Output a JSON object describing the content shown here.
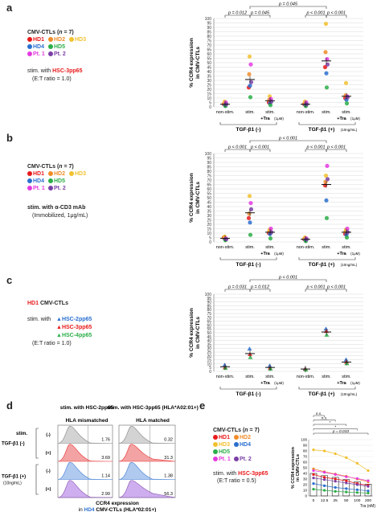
{
  "panel_labels": {
    "a": "a",
    "b": "b",
    "c": "c",
    "d": "d",
    "e": "e"
  },
  "legend": {
    "title": "CMV-CTLs (",
    "title_n": "n",
    "title_end": " = 7)",
    "donors": [
      {
        "name": "HD1",
        "color": "#e8191a"
      },
      {
        "name": "HD2",
        "color": "#f08c28"
      },
      {
        "name": "HD3",
        "color": "#f2c12e"
      },
      {
        "name": "HD4",
        "color": "#2a6fcf"
      },
      {
        "name": "HD5",
        "color": "#2bae48"
      },
      {
        "name": "Pt. 1",
        "color": "#e43be0"
      },
      {
        "name": "Pt. 2",
        "color": "#7a3fa6"
      }
    ]
  },
  "panel_a_left": {
    "stim_prefix": "stim. with ",
    "stim_peptide": "HSC-3pp65",
    "ratio": "(E:T ratio = 1.0)"
  },
  "panel_b_left": {
    "stim": "stim. with α-CD3 mAb",
    "immob": "(Immobilized, 1μg/mL)"
  },
  "panel_c_left": {
    "title_donor": "HD1",
    "title_rest": " CMV-CTLs",
    "stim_with": "stim. with",
    "peptides": [
      "HSC-2pp65",
      "HSC-3pp65",
      "HSC-4pp65"
    ],
    "peptide_colors": [
      "#2a6fcf",
      "#e8191a",
      "#2bae48"
    ],
    "ratio": "(E:T ratio = 1.0)"
  },
  "panel_e_left": {
    "stim_prefix": "stim. with ",
    "stim_peptide": "HSC-3pp65",
    "ratio": "(E:T ratio = 0.5)"
  },
  "strip_common": {
    "ylabel": "% CCR4 expression\nin CMV-CTLs",
    "yticks": [
      "0",
      "5",
      "10",
      "15",
      "20",
      "25",
      "30",
      "35",
      "40",
      "45",
      "50",
      "55",
      "60",
      "65",
      "70",
      "75",
      "80",
      "85",
      "90",
      "95",
      "100"
    ],
    "xlabels": [
      "non-stim.",
      "stim.",
      "stim.",
      "non-stim.",
      "stim.",
      "stim."
    ],
    "tra": "+Tra",
    "tra_dose": "(1μM)",
    "group1": "TGF-β1 (-)",
    "group2": "TGF-β1 (+)",
    "group2_dose": "(10ng/mL)"
  },
  "chart_data": [
    {
      "id": "a",
      "type": "scatter",
      "ylabel": "% CCR4 expression in CMV-CTLs",
      "ylim": [
        0,
        100
      ],
      "categories": [
        "non-stim.",
        "stim.",
        "stim. +Tra (1μM)",
        "non-stim.",
        "stim.",
        "stim. +Tra (1μM)"
      ],
      "groups": [
        "TGF-β1 (-)",
        "TGF-β1 (+) (10ng/mL)"
      ],
      "series": [
        {
          "name": "HD1",
          "values": [
            3,
            22,
            5,
            3,
            45,
            10
          ]
        },
        {
          "name": "HD2",
          "values": [
            4,
            37,
            8,
            4,
            62,
            13
          ]
        },
        {
          "name": "HD3",
          "values": [
            6,
            57,
            12,
            6,
            94,
            27
          ]
        },
        {
          "name": "HD4",
          "values": [
            2,
            24,
            4,
            2,
            38,
            8
          ]
        },
        {
          "name": "HD5",
          "values": [
            1,
            11,
            2,
            1,
            22,
            4
          ]
        },
        {
          "name": "Pt. 1",
          "values": [
            5,
            48,
            9,
            5,
            54,
            12
          ]
        },
        {
          "name": "Pt. 2",
          "values": [
            3,
            28,
            6,
            3,
            48,
            11
          ]
        }
      ],
      "means": [
        3,
        31,
        7,
        3,
        52,
        12
      ],
      "pvalues": [
        {
          "from": 0,
          "to": 1,
          "text": "p = 0.012"
        },
        {
          "from": 1,
          "to": 2,
          "text": "p = 0.045"
        },
        {
          "from": 3,
          "to": 4,
          "text": "p < 0.001"
        },
        {
          "from": 4,
          "to": 5,
          "text": "p < 0.001"
        },
        {
          "from": 1,
          "to": 4,
          "text": "p = 0.045"
        }
      ]
    },
    {
      "id": "b",
      "type": "scatter",
      "ylabel": "% CCR4 expression in CMV-CTLs",
      "ylim": [
        0,
        100
      ],
      "categories": [
        "non-stim.",
        "stim.",
        "stim. +Tra (1μM)",
        "non-stim.",
        "stim.",
        "stim. +Tra (1μM)"
      ],
      "groups": [
        "TGF-β1 (-)",
        "TGF-β1 (+) (10ng/mL)"
      ],
      "series": [
        {
          "name": "HD1",
          "values": [
            5,
            27,
            10,
            3,
            64,
            9
          ]
        },
        {
          "name": "HD2",
          "values": [
            4,
            32,
            12,
            4,
            68,
            12
          ]
        },
        {
          "name": "HD3",
          "values": [
            6,
            52,
            14,
            5,
            75,
            14
          ]
        },
        {
          "name": "HD4",
          "values": [
            3,
            22,
            9,
            2,
            47,
            8
          ]
        },
        {
          "name": "HD5",
          "values": [
            2,
            8,
            4,
            1,
            27,
            5
          ]
        },
        {
          "name": "Pt. 1",
          "values": [
            4,
            44,
            15,
            4,
            86,
            15
          ]
        },
        {
          "name": "Pt. 2",
          "values": [
            3,
            37,
            11,
            3,
            71,
            11
          ]
        }
      ],
      "means": [
        4,
        33,
        11,
        3,
        65,
        11
      ],
      "pvalues": [
        {
          "from": 0,
          "to": 1,
          "text": "p < 0.001"
        },
        {
          "from": 1,
          "to": 2,
          "text": "p < 0.001"
        },
        {
          "from": 3,
          "to": 4,
          "text": "p < 0.001"
        },
        {
          "from": 4,
          "to": 5,
          "text": "p < 0.001"
        },
        {
          "from": 1,
          "to": 4,
          "text": "p < 0.001"
        }
      ]
    },
    {
      "id": "c",
      "type": "scatter",
      "ylabel": "% CCR4 expression in CMV-CTLs",
      "ylim": [
        0,
        100
      ],
      "categories": [
        "non-stim.",
        "stim.",
        "stim. +Tra (1μM)",
        "non-stim.",
        "stim.",
        "stim. +Tra (1μM)"
      ],
      "groups": [
        "TGF-β1 (-)",
        "TGF-β1 (+) (10ng/mL)"
      ],
      "series": [
        {
          "name": "HSC-2pp65",
          "values": [
            8,
            29,
            7,
            3,
            55,
            15
          ]
        },
        {
          "name": "HSC-3pp65",
          "values": [
            5,
            22,
            4,
            3,
            52,
            12
          ]
        },
        {
          "name": "HSC-4pp65",
          "values": [
            4,
            18,
            3,
            2,
            47,
            10
          ]
        }
      ],
      "means": [
        6,
        23,
        5,
        3,
        51,
        12
      ],
      "pvalues": [
        {
          "from": 0,
          "to": 1,
          "text": "p = 0.031"
        },
        {
          "from": 1,
          "to": 2,
          "text": "p = 0.012"
        },
        {
          "from": 3,
          "to": 4,
          "text": "p < 0.001"
        },
        {
          "from": 4,
          "to": 5,
          "text": "p < 0.001"
        },
        {
          "from": 1,
          "to": 4,
          "text": "p < 0.001"
        }
      ]
    },
    {
      "id": "d",
      "type": "area",
      "xlabel": "CCR4 expression in HD4 CMV-CTLs (HLA*02:01+)",
      "columns": [
        {
          "title": "stim. with HSC-2pp65",
          "subtitle": "HLA mismatched"
        },
        {
          "title": "stim. with HSC-3pp65 (HLA*A02:01+)",
          "subtitle": "HLA matched"
        }
      ],
      "rows": [
        {
          "group": "TGF-β1 (-)",
          "stim": "(-)",
          "values": [
            "1.76",
            "0.32"
          ]
        },
        {
          "group": "TGF-β1 (-)",
          "stim": "(+)",
          "values": [
            "3.69",
            "31.3"
          ]
        },
        {
          "group": "TGF-β1 (+) (10ng/mL)",
          "stim": "(-)",
          "values": [
            "1.14",
            "1.38"
          ]
        },
        {
          "group": "TGF-β1 (+) (10ng/mL)",
          "stim": "(+)",
          "values": [
            "2.99",
            "56.3"
          ]
        }
      ]
    },
    {
      "id": "e",
      "type": "line",
      "ylabel": "% CCR4 expression in CMV-CTLs",
      "xlabel": "Tra (nM)",
      "categories": [
        "0",
        "12.5",
        "25",
        "50",
        "100",
        "200"
      ],
      "ylim": [
        0,
        100
      ],
      "series": [
        {
          "name": "HD1",
          "values": [
            38,
            33,
            30,
            27,
            22,
            19
          ]
        },
        {
          "name": "HD2",
          "values": [
            48,
            43,
            39,
            35,
            30,
            25
          ]
        },
        {
          "name": "HD3",
          "values": [
            82,
            80,
            75,
            68,
            58,
            45
          ]
        },
        {
          "name": "HD4",
          "values": [
            22,
            18,
            15,
            13,
            11,
            9
          ]
        },
        {
          "name": "HD5",
          "values": [
            12,
            10,
            8,
            7,
            6,
            5
          ]
        },
        {
          "name": "Pt. 1",
          "values": [
            45,
            42,
            38,
            34,
            31,
            27
          ]
        },
        {
          "name": "Pt. 2",
          "values": [
            32,
            29,
            26,
            23,
            20,
            17
          ]
        }
      ],
      "means": [
        40,
        36,
        33,
        29,
        25,
        21
      ],
      "pvalues": [
        {
          "to": "12.5",
          "text": "n.s."
        },
        {
          "to": "25",
          "text": "n.s."
        },
        {
          "to": "50",
          "text": "*"
        },
        {
          "to": "100",
          "text": "*"
        },
        {
          "to": "200",
          "text": "p = 0.033"
        }
      ]
    }
  ]
}
